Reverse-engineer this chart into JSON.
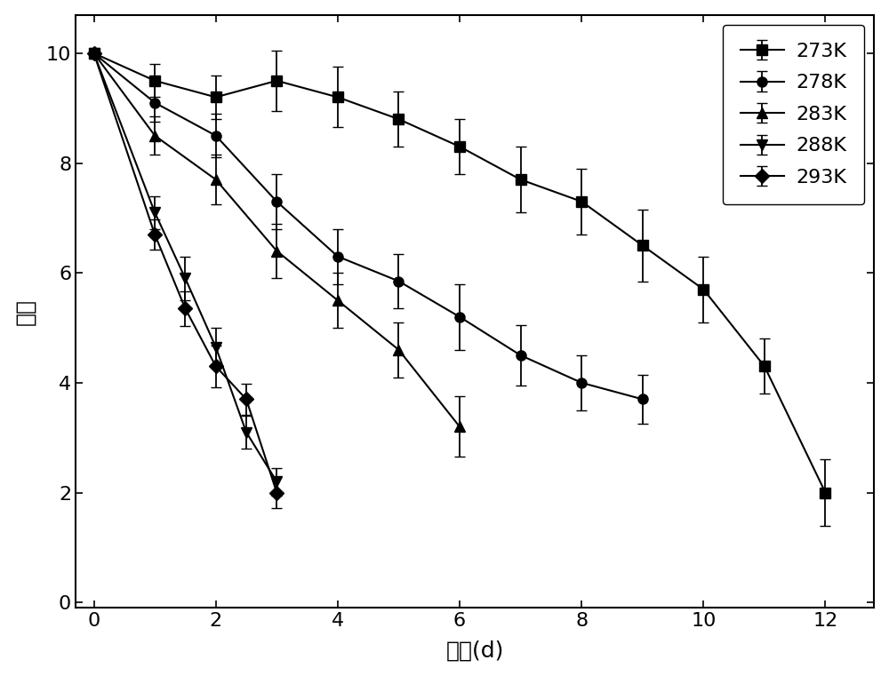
{
  "series": [
    {
      "label": "273K",
      "marker": "s",
      "x": [
        0,
        1,
        2,
        3,
        4,
        5,
        6,
        7,
        8,
        9,
        10,
        11,
        12
      ],
      "y": [
        10,
        9.5,
        9.2,
        9.5,
        9.2,
        8.8,
        8.3,
        7.7,
        7.3,
        6.5,
        5.7,
        4.3,
        2.0
      ],
      "yerr": [
        0.0,
        0.3,
        0.4,
        0.55,
        0.55,
        0.5,
        0.5,
        0.6,
        0.6,
        0.65,
        0.6,
        0.5,
        0.6
      ]
    },
    {
      "label": "278K",
      "marker": "o",
      "x": [
        0,
        1,
        2,
        3,
        4,
        5,
        6,
        7,
        8,
        9
      ],
      "y": [
        10,
        9.1,
        8.5,
        7.3,
        6.3,
        5.85,
        5.2,
        4.5,
        4.0,
        3.7
      ],
      "yerr": [
        0.0,
        0.35,
        0.4,
        0.5,
        0.5,
        0.5,
        0.6,
        0.55,
        0.5,
        0.45
      ]
    },
    {
      "label": "283K",
      "marker": "^",
      "x": [
        0,
        1,
        2,
        3,
        4,
        5,
        6
      ],
      "y": [
        10,
        8.5,
        7.7,
        6.4,
        5.5,
        4.6,
        3.2
      ],
      "yerr": [
        0.0,
        0.35,
        0.45,
        0.5,
        0.5,
        0.5,
        0.55
      ]
    },
    {
      "label": "288K",
      "marker": "v",
      "x": [
        0,
        1,
        1.5,
        2,
        2.5,
        3
      ],
      "y": [
        10,
        7.1,
        5.9,
        4.65,
        3.1,
        2.2
      ],
      "yerr": [
        0.0,
        0.3,
        0.4,
        0.35,
        0.3,
        0.25
      ]
    },
    {
      "label": "293K",
      "marker": "D",
      "x": [
        0,
        1,
        1.5,
        2,
        2.5,
        3
      ],
      "y": [
        10,
        6.7,
        5.35,
        4.3,
        3.7,
        2.0
      ],
      "yerr": [
        0.0,
        0.28,
        0.32,
        0.38,
        0.28,
        0.28
      ]
    }
  ],
  "xlabel": "时间(d)",
  "ylabel": "感官",
  "xlim": [
    -0.3,
    12.8
  ],
  "ylim": [
    -0.1,
    10.7
  ],
  "xticks": [
    0,
    2,
    4,
    6,
    8,
    10,
    12
  ],
  "yticks": [
    0,
    2,
    4,
    6,
    8,
    10
  ],
  "color": "#000000",
  "linewidth": 1.5,
  "markersize": 8,
  "capsize": 4,
  "legend_fontsize": 16,
  "axis_fontsize": 18,
  "tick_fontsize": 16,
  "figsize": [
    10.0,
    7.61
  ]
}
